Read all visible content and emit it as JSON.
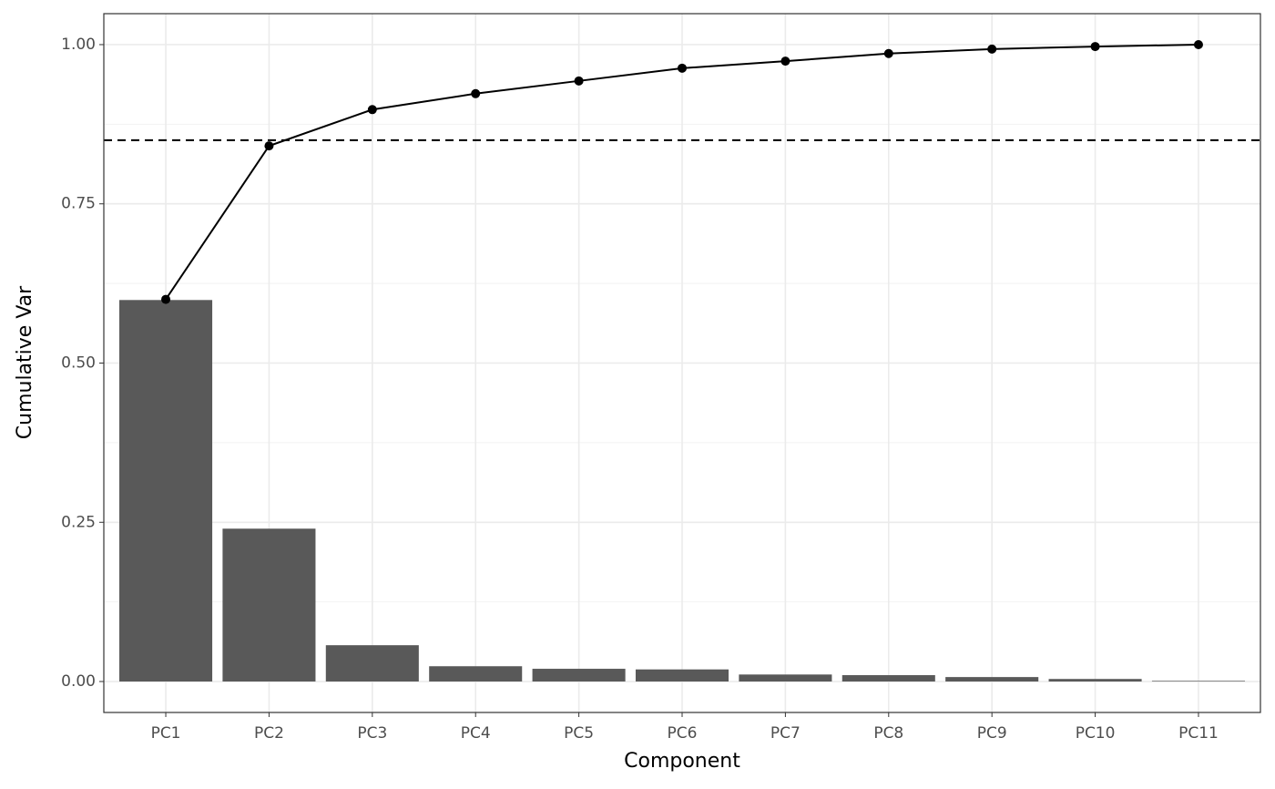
{
  "chart_data": {
    "type": "bar_line",
    "x_label": "Component",
    "y_label": "Cumulative Var",
    "categories": [
      "PC1",
      "PC2",
      "PC3",
      "PC4",
      "PC5",
      "PC6",
      "PC7",
      "PC8",
      "PC9",
      "PC10",
      "PC11"
    ],
    "bars": {
      "color": "#595959",
      "values": [
        0.599,
        0.24,
        0.057,
        0.024,
        0.02,
        0.019,
        0.011,
        0.01,
        0.007,
        0.004,
        0.001
      ]
    },
    "line": {
      "color": "#000000",
      "values": [
        0.6,
        0.841,
        0.898,
        0.923,
        0.943,
        0.963,
        0.974,
        0.986,
        0.993,
        0.997,
        1.0
      ]
    },
    "hline": 0.85,
    "ylim": [
      -0.0486,
      1.0486
    ],
    "yticks": [
      {
        "value": 0,
        "label": "0.00"
      },
      {
        "value": 0.25,
        "label": "0.25"
      },
      {
        "value": 0.5,
        "label": "0.50"
      },
      {
        "value": 0.75,
        "label": "0.75"
      },
      {
        "value": 1,
        "label": "1.00"
      }
    ],
    "minor_yticks": [
      0.125,
      0.375,
      0.625,
      0.875
    ],
    "grid": true
  }
}
